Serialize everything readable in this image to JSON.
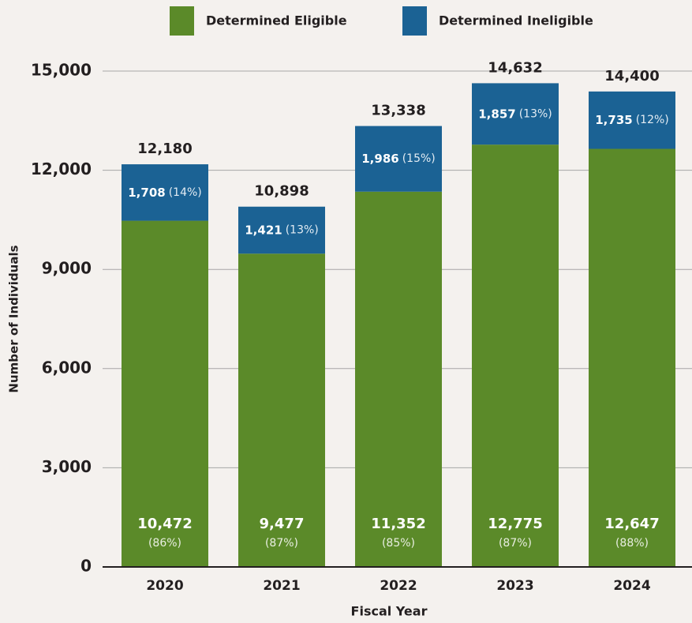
{
  "chart_data": {
    "type": "stacked_bar",
    "xlabel": "Fiscal Year",
    "ylabel": "Number of Individuals",
    "categories": [
      "2020",
      "2021",
      "2022",
      "2023",
      "2024"
    ],
    "series": [
      {
        "name": "Determined Eligible",
        "color": "#5b8a29",
        "values": [
          10472,
          9477,
          11352,
          12775,
          12647
        ],
        "value_labels": [
          "10,472",
          "9,477",
          "11,352",
          "12,775",
          "12,647"
        ],
        "percent_labels": [
          "(86%)",
          "(87%)",
          "(85%)",
          "(87%)",
          "(88%)"
        ]
      },
      {
        "name": "Determined Ineligible",
        "color": "#1b6294",
        "values": [
          1708,
          1421,
          1986,
          1857,
          1735
        ],
        "value_labels": [
          "1,708",
          "1,421",
          "1,986",
          "1,857",
          "1,735"
        ],
        "percent_labels": [
          "(14%)",
          "(13%)",
          "(15%)",
          "(13%)",
          "(12%)"
        ]
      }
    ],
    "totals": [
      12180,
      10898,
      13338,
      14632,
      14400
    ],
    "total_labels": [
      "12,180",
      "10,898",
      "13,338",
      "14,632",
      "14,400"
    ],
    "ylim": [
      0,
      15000
    ],
    "yticks": [
      0,
      {
        "value": 3000,
        "label": "3,000"
      },
      {
        "value": 6000,
        "label": "6,000"
      },
      {
        "value": 9000,
        "label": "9,000"
      },
      {
        "value": 12000,
        "label": "12,000"
      },
      {
        "value": 15000,
        "label": "15,000"
      }
    ],
    "grid": true,
    "legend": "top"
  }
}
